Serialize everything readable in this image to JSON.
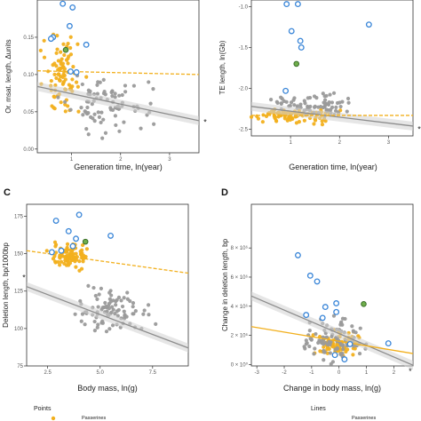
{
  "colors": {
    "orange": "#F2B01E",
    "grey": "#9A9A9A",
    "blue": "#3A86D8",
    "green": "#6FAE4B",
    "line_grey": "#8C8C8C",
    "band_grey": "#D2D2D2",
    "star": "#2FA8E2"
  },
  "legend": {
    "points_title": "Points",
    "lines_title": "Lines",
    "points_item_text": "Passerines",
    "lines_item_text": "Passerines"
  },
  "chart_data": [
    {
      "panel": "",
      "type": "scatter",
      "xlabel": "Generation time, ln(year)",
      "ylabel": "Or. msat. length, Δunits",
      "xlim": [
        0.3,
        3.6
      ],
      "ylim": [
        -0.005,
        0.2
      ],
      "xticks": [
        "1",
        "2",
        "3"
      ],
      "yticks": [
        "0.00",
        "0.05",
        "0.10",
        "0.15"
      ],
      "fit_passerine": {
        "x": [
          0.3,
          3.6
        ],
        "y": [
          0.105,
          0.1
        ]
      },
      "fit_other": {
        "x": [
          0.3,
          3.6
        ],
        "y": [
          0.084,
          0.038
        ]
      },
      "star": {
        "x": 3.6,
        "y": 0.036
      },
      "highlights_blue": [
        [
          0.82,
          0.195
        ],
        [
          1.02,
          0.19
        ],
        [
          0.96,
          0.165
        ],
        [
          0.62,
          0.15
        ],
        [
          0.58,
          0.148
        ],
        [
          1.3,
          0.14
        ],
        [
          0.98,
          0.104
        ],
        [
          1.1,
          0.103
        ]
      ],
      "highlights_green": [
        [
          0.88,
          0.133
        ]
      ]
    },
    {
      "panel": "",
      "type": "scatter",
      "xlabel": "Generation time, ln(year)",
      "ylabel": "TE length, ln(Gb)",
      "xlim": [
        0.2,
        3.5
      ],
      "ylim": [
        -2.58,
        -0.92
      ],
      "xticks": [
        "1",
        "2",
        "3"
      ],
      "yticks": [
        "-1.0",
        "-1.5",
        "-2.0",
        "-2.5"
      ],
      "fit_passerine": {
        "x": [
          0.2,
          3.5
        ],
        "y": [
          -2.33,
          -2.33
        ]
      },
      "fit_other": {
        "x": [
          0.2,
          3.5
        ],
        "y": [
          -2.22,
          -2.46
        ]
      },
      "star": {
        "x": 3.5,
        "y": -2.5
      },
      "highlights_blue": [
        [
          0.92,
          -0.97
        ],
        [
          1.15,
          -0.97
        ],
        [
          2.6,
          -1.22
        ],
        [
          1.02,
          -1.3
        ],
        [
          1.2,
          -1.42
        ],
        [
          1.22,
          -1.5
        ],
        [
          0.9,
          -2.03
        ]
      ],
      "highlights_green": [
        [
          1.12,
          -1.7
        ]
      ]
    },
    {
      "panel": "C",
      "type": "scatter",
      "xlabel": "Body mass, ln(g)",
      "ylabel": "Deletion length, bp/1000bp",
      "xlim": [
        1.5,
        9.2
      ],
      "ylim": [
        75,
        183
      ],
      "xticks": [
        "2.5",
        "5.0",
        "7.5"
      ],
      "yticks": [
        "75",
        "100",
        "125",
        "150",
        "175"
      ],
      "fit_passerine": {
        "x": [
          1.5,
          9.2
        ],
        "y": [
          152,
          137
        ]
      },
      "fit_other": {
        "x": [
          1.5,
          9.2
        ],
        "y": [
          128,
          87
        ]
      },
      "star": {
        "x": 1.5,
        "y": 134
      },
      "highlights_blue": [
        [
          4.0,
          176
        ],
        [
          2.9,
          172
        ],
        [
          3.5,
          165
        ],
        [
          3.85,
          160
        ],
        [
          3.7,
          155
        ],
        [
          2.7,
          151
        ],
        [
          3.15,
          152
        ],
        [
          5.5,
          162
        ]
      ],
      "highlights_green": [
        [
          4.3,
          158
        ]
      ]
    },
    {
      "panel": "D",
      "type": "scatter",
      "xlabel": "Change in body mass, ln(g)",
      "ylabel": "Change in deletion length, bp",
      "xlim": [
        -3.2,
        2.7
      ],
      "ylim": [
        -0.1,
        11
      ],
      "xticks": [
        "-3",
        "-2",
        "-1",
        "0",
        "1",
        "2"
      ],
      "yticks": [
        "0 × 10⁰",
        "2 × 10⁶",
        "4 × 10⁶",
        "6 × 10⁶",
        "8 × 10⁶"
      ],
      "fit_passerine": {
        "x": [
          -3.2,
          2.7
        ],
        "y": [
          2.6,
          0.75
        ]
      },
      "fit_other": {
        "x": [
          -3.2,
          2.7
        ],
        "y": [
          4.7,
          -0.05
        ]
      },
      "star": {
        "x": 2.6,
        "y": -0.05
      },
      "highlights_blue": [
        [
          -1.5,
          7.5
        ],
        [
          -1.05,
          6.1
        ],
        [
          -0.8,
          5.7
        ],
        [
          -0.1,
          4.2
        ],
        [
          -0.5,
          3.95
        ],
        [
          -0.1,
          3.6
        ],
        [
          -1.2,
          3.4
        ],
        [
          -0.6,
          3.2
        ],
        [
          1.8,
          1.45
        ],
        [
          0.4,
          1.4
        ],
        [
          -0.15,
          0.65
        ],
        [
          0.2,
          0.35
        ]
      ],
      "highlights_green": [
        [
          0.9,
          4.15
        ]
      ]
    }
  ]
}
